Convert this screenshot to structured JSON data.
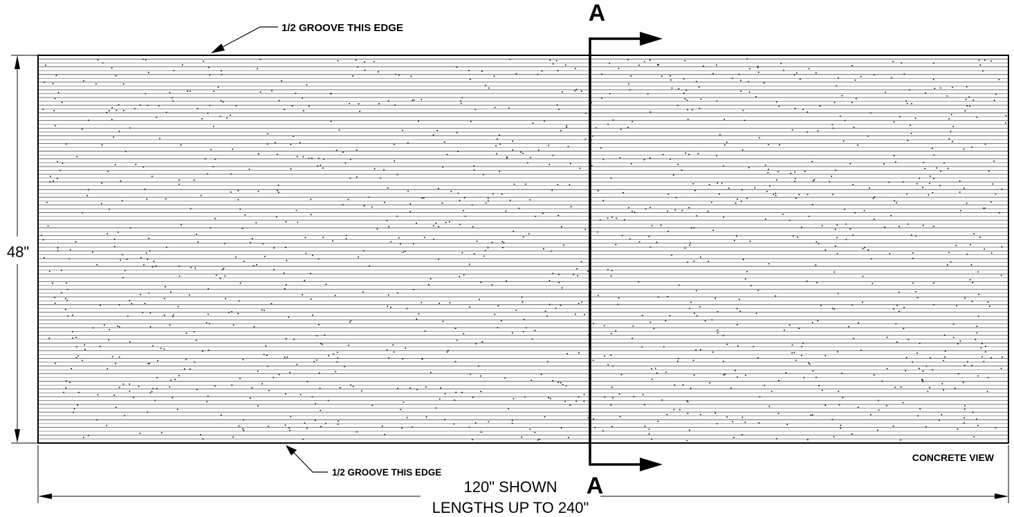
{
  "drawing": {
    "section_marker": "A",
    "top_callout": "1/2 GROOVE THIS EDGE",
    "bottom_callout": "1/2 GROOVE THIS EDGE",
    "height_dimension": "48\"",
    "length_dimension_line1": "120\" SHOWN",
    "length_dimension_line2": "LENGTHS UP TO 240\"",
    "view_label": "CONCRETE VIEW"
  },
  "colors": {
    "line": "#000000",
    "groove": "#8a8a8a",
    "background": "#ffffff"
  }
}
